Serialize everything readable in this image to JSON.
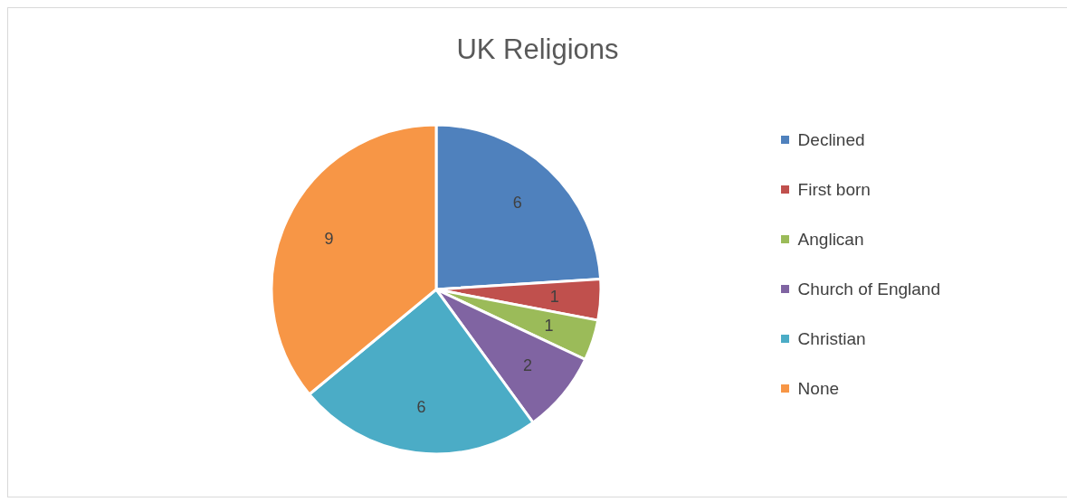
{
  "chart_data": {
    "type": "pie",
    "title": "UK Religions",
    "categories": [
      "Declined",
      "First born",
      "Anglican",
      "Church of England",
      "Christian",
      "None"
    ],
    "values": [
      6,
      1,
      1,
      2,
      6,
      9
    ],
    "colors": [
      "#4f81bd",
      "#c0504d",
      "#9bbb59",
      "#8064a2",
      "#4bacc6",
      "#f79646"
    ],
    "data_labels": true,
    "legend": "right"
  }
}
